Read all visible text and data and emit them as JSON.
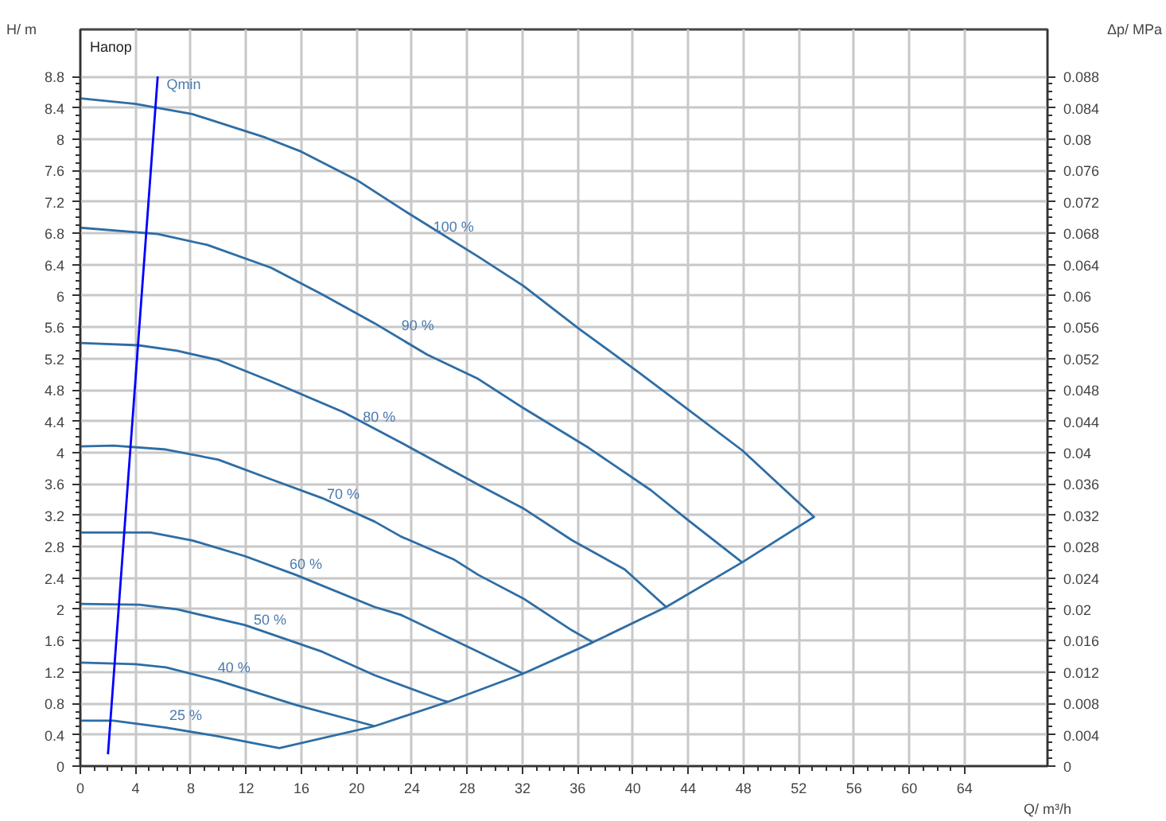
{
  "chart_data": {
    "type": "line",
    "xlabel": "Q/ m³/h",
    "ylabel": "H/ m",
    "y2label": "Δp/ MPa",
    "xlim": [
      0,
      70
    ],
    "ylim": [
      0,
      9.4
    ],
    "y2lim": [
      0,
      0.094
    ],
    "xticks": [
      0,
      4,
      8,
      12,
      16,
      20,
      24,
      28,
      32,
      36,
      40,
      44,
      48,
      52,
      56,
      60,
      64
    ],
    "yticks": [
      0,
      0.4,
      0.8,
      1.2,
      1.6,
      2,
      2.4,
      2.8,
      3.2,
      3.6,
      4,
      4.4,
      4.8,
      5.2,
      5.6,
      6,
      6.4,
      6.8,
      7.2,
      7.6,
      8,
      8.4,
      8.8
    ],
    "y2ticks": [
      0,
      0.004,
      0.008,
      0.012,
      0.016,
      0.02,
      0.024,
      0.028,
      0.032,
      0.036,
      0.04,
      0.044,
      0.048,
      0.052,
      0.056,
      0.06,
      0.064,
      0.068,
      0.072,
      0.076,
      0.08,
      0.084,
      0.088
    ],
    "grid": true,
    "marker": "none",
    "line_style": "solid",
    "series": [
      {
        "color": "#2e6da4",
        "x": [
          0,
          4,
          5.6,
          8.1,
          13.4,
          16.0,
          20.0,
          23.6,
          28.8,
          32.05,
          36.1,
          40.3,
          47.9,
          53.1,
          47.9,
          42.4,
          37.1,
          32.05,
          26.6,
          21.3,
          14.4,
          10.0,
          6.2,
          2.4,
          0
        ],
        "values": [
          8.52,
          8.45,
          8.4,
          8.32,
          8.02,
          7.84,
          7.48,
          7.07,
          6.5,
          6.13,
          5.58,
          5.04,
          4.03,
          3.18,
          2.6,
          2.03,
          1.58,
          1.18,
          0.82,
          0.51,
          0.23,
          0.38,
          0.49,
          0.58,
          0.58
        ]
      },
      {
        "color": "#2e6da4",
        "x": [
          0,
          5.6,
          9.2,
          13.8,
          17.5,
          21.3,
          25.1,
          28.8,
          32.05,
          36.8,
          41.3,
          43.9,
          47.9
        ],
        "values": [
          6.87,
          6.79,
          6.65,
          6.36,
          6.02,
          5.65,
          5.25,
          4.94,
          4.57,
          4.06,
          3.52,
          3.15,
          2.6
        ]
      },
      {
        "color": "#2e6da4",
        "x": [
          0,
          4.2,
          7.0,
          10.0,
          13.8,
          19.0,
          23.2,
          28.8,
          32.05,
          35.6,
          39.4,
          42.4
        ],
        "values": [
          5.4,
          5.37,
          5.3,
          5.18,
          4.91,
          4.52,
          4.13,
          3.59,
          3.29,
          2.88,
          2.51,
          2.03
        ]
      },
      {
        "color": "#2e6da4",
        "x": [
          0,
          2.4,
          6.2,
          10.0,
          13.8,
          17.5,
          21.3,
          23.2,
          27.0,
          28.8,
          32.05,
          35.6,
          37.1
        ],
        "values": [
          4.08,
          4.09,
          4.04,
          3.91,
          3.66,
          3.42,
          3.12,
          2.93,
          2.64,
          2.44,
          2.14,
          1.73,
          1.58
        ]
      },
      {
        "color": "#2e6da4",
        "x": [
          0,
          5.1,
          8.1,
          11.9,
          15.6,
          21.3,
          23.2,
          28.8,
          32.05
        ],
        "values": [
          2.98,
          2.98,
          2.88,
          2.68,
          2.44,
          2.03,
          1.93,
          1.46,
          1.18
        ]
      },
      {
        "color": "#2e6da4",
        "x": [
          0,
          4.3,
          7.0,
          11.9,
          17.5,
          21.3,
          26.2,
          26.6
        ],
        "values": [
          2.07,
          2.06,
          2.0,
          1.8,
          1.46,
          1.16,
          0.84,
          0.82
        ]
      },
      {
        "color": "#2e6da4",
        "x": [
          0,
          4.0,
          6.2,
          10.0,
          15.6,
          21.3
        ],
        "values": [
          1.32,
          1.3,
          1.26,
          1.09,
          0.78,
          0.51
        ]
      },
      {
        "color": "#0000ff",
        "x": [
          2.0,
          5.6
        ],
        "values": [
          0.15,
          8.8
        ]
      }
    ],
    "annotations": [
      "Напор",
      {
        "text": "Qmin",
        "x": 5.9,
        "y": 8.64
      },
      {
        "text": "100 %",
        "x": 25.2,
        "y": 6.82
      },
      {
        "text": "90 %",
        "x": 22.9,
        "y": 5.56
      },
      {
        "text": "80 %",
        "x": 20.1,
        "y": 4.4
      },
      {
        "text": "70 %",
        "x": 17.5,
        "y": 3.41
      },
      {
        "text": "60 %",
        "x": 14.8,
        "y": 2.52
      },
      {
        "text": "50 %",
        "x": 12.2,
        "y": 1.81
      },
      {
        "text": "40 %",
        "x": 9.6,
        "y": 1.2
      },
      {
        "text": "25 %",
        "x": 6.1,
        "y": 0.59
      }
    ]
  }
}
